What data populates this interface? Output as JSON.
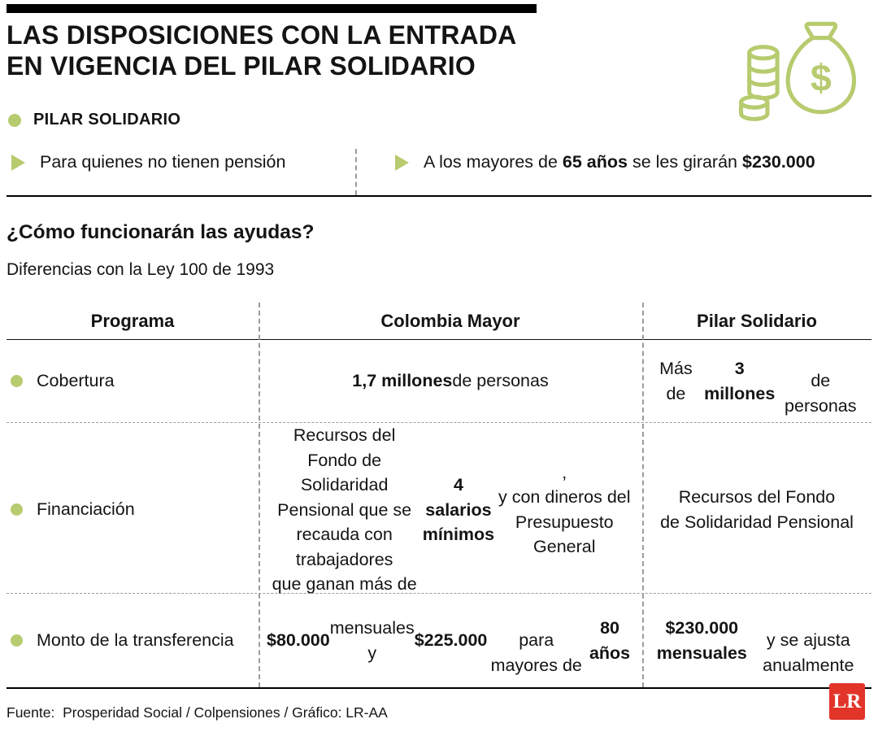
{
  "colors": {
    "accent_green": "#b7cb6f",
    "logo_red": "#e23429",
    "text_black": "#141414",
    "dash_gray": "#9b9b9b"
  },
  "header": {
    "title_line1": "LAS DISPOSICIONES CON LA ENTRADA",
    "title_line2": "EN VIGENCIA DEL PILAR SOLIDARIO",
    "icon": "money-bag-and-coins-icon"
  },
  "intro": {
    "label": "PILAR SOLIDARIO",
    "bullet1": "Para quienes no tienen pensión",
    "bullet2": [
      {
        "t": "A los mayores de ",
        "b": false
      },
      {
        "t": "65 años",
        "b": true
      },
      {
        "t": " se les girarán ",
        "b": false
      },
      {
        "t": "$230.000",
        "b": true
      }
    ]
  },
  "section": {
    "question": "¿Cómo funcionarán las ayudas?",
    "subtitle": "Diferencias con la Ley 100 de 1993"
  },
  "table": {
    "headers": [
      "Programa",
      "Colombia Mayor",
      "Pilar Solidario"
    ],
    "rows": [
      {
        "label": "Cobertura",
        "colombia_mayor": [
          {
            "t": "1,7 millones",
            "b": true
          },
          {
            "t": " de personas",
            "b": false
          }
        ],
        "pilar_solidario": [
          {
            "t": "Más de ",
            "b": false
          },
          {
            "t": "3 millones",
            "b": true
          },
          {
            "t": "\nde personas",
            "b": false
          }
        ]
      },
      {
        "label": "Financiación",
        "colombia_mayor": [
          {
            "t": "Recursos del Fondo de Solidaridad\nPensional que se recauda con trabajadores\nque ganan más de ",
            "b": false
          },
          {
            "t": "4 salarios mínimos",
            "b": true
          },
          {
            "t": ",\ny con dineros del Presupuesto General",
            "b": false
          }
        ],
        "pilar_solidario": [
          {
            "t": "Recursos del Fondo\nde Solidaridad Pensional",
            "b": false
          }
        ]
      },
      {
        "label": "Monto de la transferencia",
        "colombia_mayor": [
          {
            "t": "$80.000",
            "b": true
          },
          {
            "t": " mensuales y ",
            "b": false
          },
          {
            "t": "$225.000",
            "b": true
          },
          {
            "t": "\npara mayores de ",
            "b": false
          },
          {
            "t": "80 años",
            "b": true
          }
        ],
        "pilar_solidario": [
          {
            "t": "$230.000 mensuales",
            "b": true
          },
          {
            "t": "\ny se ajusta anualmente",
            "b": false
          }
        ]
      }
    ]
  },
  "footer": {
    "source": "Fuente:  Prosperidad Social / Colpensiones / Gráfico: LR-AA",
    "logo_text": "LR"
  },
  "chart_data": {
    "type": "table",
    "title": "¿Cómo funcionarán las ayudas?",
    "subtitle": "Diferencias con la Ley 100 de 1993",
    "columns": [
      "Programa",
      "Colombia Mayor",
      "Pilar Solidario"
    ],
    "rows": [
      [
        "Cobertura",
        "1,7 millones de personas",
        "Más de 3 millones de personas"
      ],
      [
        "Financiación",
        "Recursos del Fondo de Solidaridad Pensional que se recauda con trabajadores que ganan más de 4 salarios mínimos, y con dineros del Presupuesto General",
        "Recursos del Fondo de Solidaridad Pensional"
      ],
      [
        "Monto de la transferencia",
        "$80.000 mensuales y $225.000 para mayores de 80 años",
        "$230.000 mensuales y se ajusta anualmente"
      ]
    ],
    "annotations": [
      "PILAR SOLIDARIO",
      "Para quienes no tienen pensión",
      "A los mayores de 65 años se les girarán $230.000"
    ]
  }
}
